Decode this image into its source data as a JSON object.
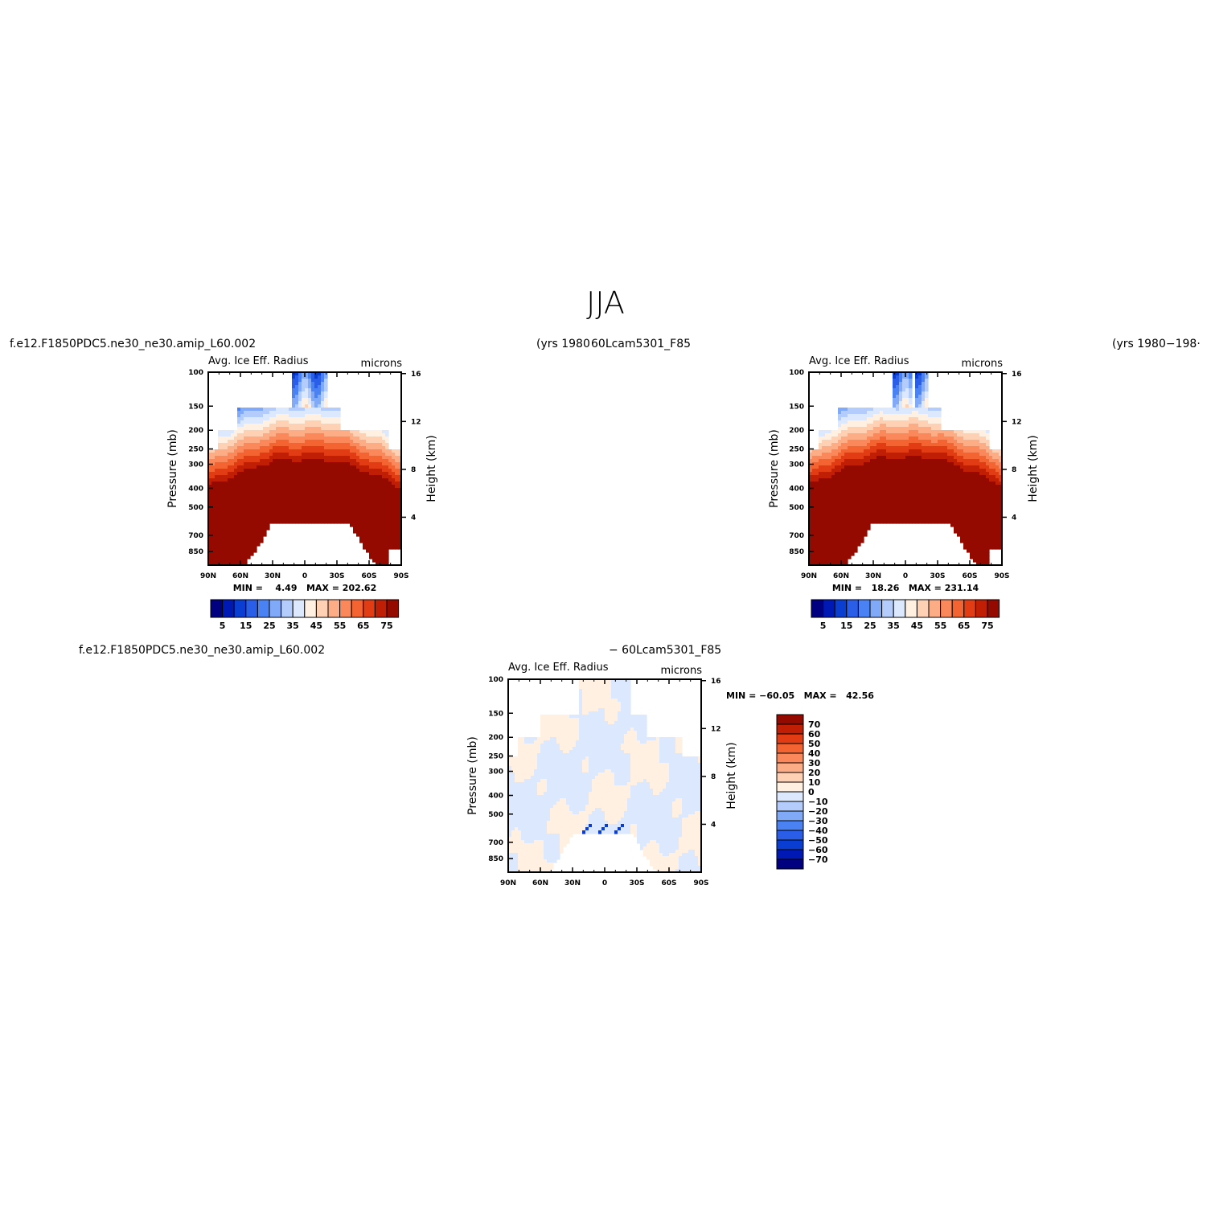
{
  "figure": {
    "title": "JJA",
    "top_left_case": "f.e12.F1850PDC5.ne30_ne30.amip_L60.002",
    "top_left_years": "(yrs 1980",
    "top_right_case": "60Lcam5301_F85",
    "top_right_years": "(yrs 1980−198·",
    "bottom_case": "f.e12.F1850PDC5.ne30_ne30.amip_L60.002",
    "bottom_case_b": "− 60Lcam5301_F85"
  },
  "colors": {
    "case_levels": [
      "#000080",
      "#0018b4",
      "#0a3ed2",
      "#2a5ee8",
      "#4a82f4",
      "#80aaf7",
      "#b3ccfb",
      "#dbe8fd",
      "#fff0e2",
      "#fed1b4",
      "#fdad86",
      "#fb885a",
      "#f46332",
      "#e23c14",
      "#c01f05",
      "#940a00"
    ],
    "diff_levels": [
      "#000080",
      "#0018b4",
      "#0a3ed2",
      "#2a5ee8",
      "#4a82f4",
      "#80aaf7",
      "#b3ccfb",
      "#dbe8fd",
      "#fff0e2",
      "#fed1b4",
      "#fdad86",
      "#fb885a",
      "#f46332",
      "#e23c14",
      "#c01f05",
      "#940a00"
    ]
  },
  "chart_data": [
    {
      "type": "heatmap",
      "title": "Avg. Ice Eff. Radius",
      "units": "microns",
      "xlabel": "",
      "ylabel": "Pressure (mb)",
      "ylabel_right": "Height (km)",
      "x_ticks": [
        "90N",
        "60N",
        "30N",
        "0",
        "30S",
        "60S",
        "90S"
      ],
      "y_ticks": [
        "100",
        "150",
        "200",
        "250",
        "300",
        "400",
        "500",
        "700",
        "850"
      ],
      "y2_ticks": [
        "16",
        "12",
        "8",
        "4"
      ],
      "stats": "MIN =    4.49   MAX = 202.62",
      "colorbar_labels": [
        "5",
        "15",
        "25",
        "35",
        "45",
        "55",
        "65",
        "75"
      ],
      "colorbar_orientation": "horizontal",
      "xlim": [
        -90,
        90
      ],
      "ylim": [
        1000,
        100
      ],
      "approx_levels": [
        0,
        5,
        10,
        15,
        20,
        25,
        30,
        35,
        40,
        45,
        50,
        55,
        60,
        65,
        70,
        75
      ]
    },
    {
      "type": "heatmap",
      "title": "Avg. Ice Eff. Radius",
      "units": "microns",
      "xlabel": "",
      "ylabel": "Pressure (mb)",
      "ylabel_right": "Height (km)",
      "x_ticks": [
        "90N",
        "60N",
        "30N",
        "0",
        "30S",
        "60S",
        "90S"
      ],
      "y_ticks": [
        "100",
        "150",
        "200",
        "250",
        "300",
        "400",
        "500",
        "700",
        "850"
      ],
      "y2_ticks": [
        "16",
        "12",
        "8",
        "4"
      ],
      "stats": "MIN =   18.26   MAX = 231.14",
      "colorbar_labels": [
        "5",
        "15",
        "25",
        "35",
        "45",
        "55",
        "65",
        "75"
      ],
      "colorbar_orientation": "horizontal",
      "xlim": [
        -90,
        90
      ],
      "ylim": [
        1000,
        100
      ],
      "approx_levels": [
        0,
        5,
        10,
        15,
        20,
        25,
        30,
        35,
        40,
        45,
        50,
        55,
        60,
        65,
        70,
        75
      ]
    },
    {
      "type": "heatmap",
      "title": "Avg. Ice Eff. Radius",
      "units": "microns",
      "xlabel": "",
      "ylabel": "Pressure (mb)",
      "ylabel_right": "Height (km)",
      "x_ticks": [
        "90N",
        "60N",
        "30N",
        "0",
        "30S",
        "60S",
        "90S"
      ],
      "y_ticks": [
        "100",
        "150",
        "200",
        "250",
        "300",
        "400",
        "500",
        "700",
        "850"
      ],
      "y2_ticks": [
        "16",
        "12",
        "8",
        "4"
      ],
      "stats": "MIN = −60.05   MAX =   42.56",
      "colorbar_labels": [
        "70",
        "60",
        "50",
        "40",
        "30",
        "20",
        "10",
        "0",
        "−10",
        "−20",
        "−30",
        "−40",
        "−50",
        "−60",
        "−70"
      ],
      "colorbar_orientation": "vertical",
      "xlim": [
        -90,
        90
      ],
      "ylim": [
        1000,
        100
      ],
      "approx_levels": [
        -70,
        -60,
        -50,
        -40,
        -30,
        -20,
        -10,
        0,
        10,
        20,
        30,
        40,
        50,
        60,
        70
      ]
    }
  ]
}
